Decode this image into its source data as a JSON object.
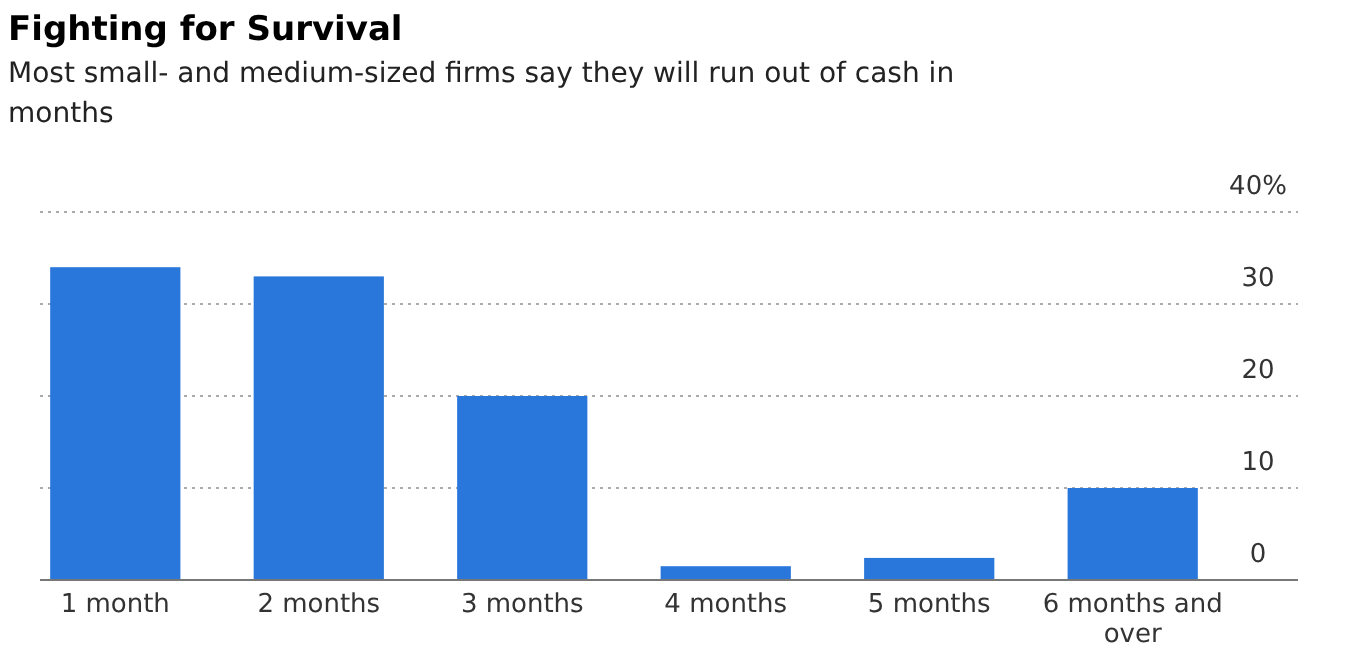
{
  "chart_data": {
    "type": "bar",
    "title": "Fighting for Survival",
    "subtitle": "Most small- and medium-sized firms say they will run out of cash in months",
    "categories": [
      "1 month",
      "2 months",
      "3 months",
      "4 months",
      "5 months",
      "6 months and over"
    ],
    "values": [
      34,
      33,
      20,
      1.5,
      2.4,
      10
    ],
    "color": "#2a77dc",
    "ylim": [
      0,
      40
    ],
    "yticks": [
      0,
      10,
      20,
      30,
      {
        "value": 40,
        "label": "40%"
      }
    ],
    "grid": "y"
  }
}
